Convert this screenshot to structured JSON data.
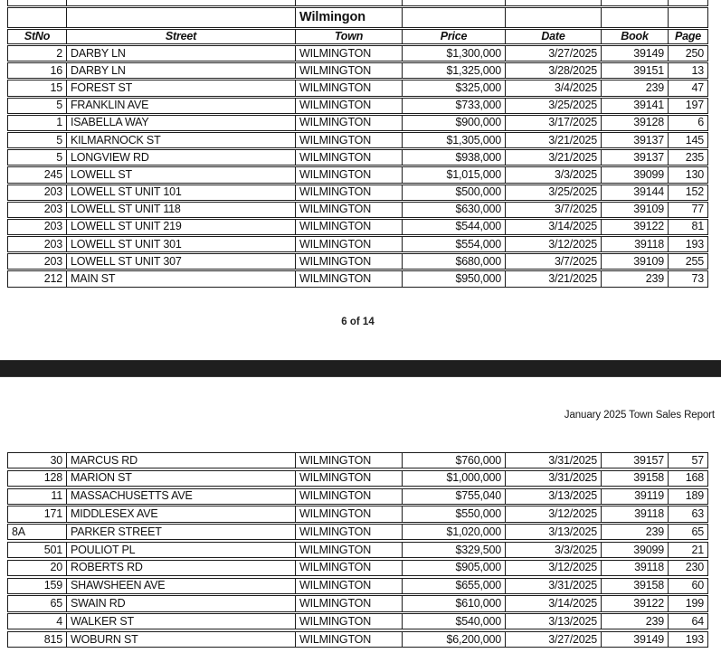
{
  "document": {
    "report_title": "January 2025 Town Sales Report",
    "page_indicator": "6 of 14",
    "group_header": "Wilmingon",
    "columns": [
      "StNo",
      "Street",
      "Town",
      "Price",
      "Date",
      "Book",
      "Page"
    ],
    "colors": {
      "border": "#1c1c1c",
      "page_break_bar": "#1f1f1f",
      "text": "#111111",
      "background": "#ffffff"
    },
    "page_top_rows": [
      [
        "2",
        "DARBY LN",
        "WILMINGTON",
        "$1,300,000",
        "3/27/2025",
        "39149",
        "250"
      ],
      [
        "16",
        "DARBY LN",
        "WILMINGTON",
        "$1,325,000",
        "3/28/2025",
        "39151",
        "13"
      ],
      [
        "15",
        "FOREST ST",
        "WILMINGTON",
        "$325,000",
        "3/4/2025",
        "239",
        "47"
      ],
      [
        "5",
        "FRANKLIN AVE",
        "WILMINGTON",
        "$733,000",
        "3/25/2025",
        "39141",
        "197"
      ],
      [
        "1",
        "ISABELLA WAY",
        "WILMINGTON",
        "$900,000",
        "3/17/2025",
        "39128",
        "6"
      ],
      [
        "5",
        "KILMARNOCK ST",
        "WILMINGTON",
        "$1,305,000",
        "3/21/2025",
        "39137",
        "145"
      ],
      [
        "5",
        "LONGVIEW RD",
        "WILMINGTON",
        "$938,000",
        "3/21/2025",
        "39137",
        "235"
      ],
      [
        "245",
        "LOWELL ST",
        "WILMINGTON",
        "$1,015,000",
        "3/3/2025",
        "39099",
        "130"
      ],
      [
        "203",
        "LOWELL ST UNIT 101",
        "WILMINGTON",
        "$500,000",
        "3/25/2025",
        "39144",
        "152"
      ],
      [
        "203",
        "LOWELL ST UNIT 118",
        "WILMINGTON",
        "$630,000",
        "3/7/2025",
        "39109",
        "77"
      ],
      [
        "203",
        "LOWELL ST UNIT 219",
        "WILMINGTON",
        "$544,000",
        "3/14/2025",
        "39122",
        "81"
      ],
      [
        "203",
        "LOWELL ST UNIT 301",
        "WILMINGTON",
        "$554,000",
        "3/12/2025",
        "39118",
        "193"
      ],
      [
        "203",
        "LOWELL ST UNIT 307",
        "WILMINGTON",
        "$680,000",
        "3/7/2025",
        "39109",
        "255"
      ],
      [
        "212",
        "MAIN ST",
        "WILMINGTON",
        "$950,000",
        "3/21/2025",
        "239",
        "73"
      ]
    ],
    "page_bottom_rows": [
      [
        "30",
        "MARCUS RD",
        "WILMINGTON",
        "$760,000",
        "3/31/2025",
        "39157",
        "57"
      ],
      [
        "128",
        "MARION ST",
        "WILMINGTON",
        "$1,000,000",
        "3/31/2025",
        "39158",
        "168"
      ],
      [
        "11",
        "MASSACHUSETTS AVE",
        "WILMINGTON",
        "$755,040",
        "3/13/2025",
        "39119",
        "189"
      ],
      [
        "171",
        "MIDDLESEX AVE",
        "WILMINGTON",
        "$550,000",
        "3/12/2025",
        "39118",
        "63"
      ],
      [
        "8A",
        "PARKER STREET",
        "WILMINGTON",
        "$1,020,000",
        "3/13/2025",
        "239",
        "65"
      ],
      [
        "501",
        "POULIOT PL",
        "WILMINGTON",
        "$329,500",
        "3/3/2025",
        "39099",
        "21"
      ],
      [
        "20",
        "ROBERTS RD",
        "WILMINGTON",
        "$905,000",
        "3/12/2025",
        "39118",
        "230"
      ],
      [
        "159",
        "SHAWSHEEN AVE",
        "WILMINGTON",
        "$655,000",
        "3/31/2025",
        "39158",
        "60"
      ],
      [
        "65",
        "SWAIN RD",
        "WILMINGTON",
        "$610,000",
        "3/14/2025",
        "39122",
        "199"
      ],
      [
        "4",
        "WALKER ST",
        "WILMINGTON",
        "$540,000",
        "3/13/2025",
        "239",
        "64"
      ],
      [
        "815",
        "WOBURN ST",
        "WILMINGTON",
        "$6,200,000",
        "3/27/2025",
        "39149",
        "193"
      ]
    ]
  }
}
